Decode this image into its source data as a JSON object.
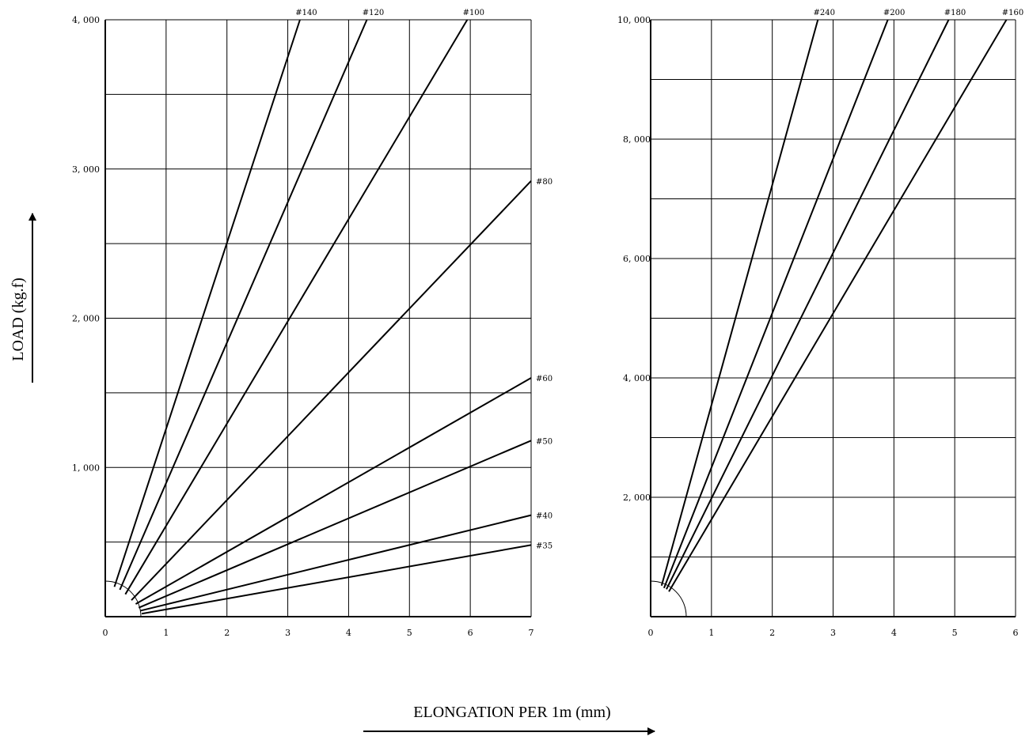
{
  "axis_titles": {
    "y": "LOAD (kg.f)",
    "x": "ELONGATION PER 1m  (mm)"
  },
  "chart_data": [
    {
      "type": "line",
      "xlim": [
        0,
        7
      ],
      "ylim": [
        0,
        4000
      ],
      "x_ticks": [
        0,
        1,
        2,
        3,
        4,
        5,
        6,
        7
      ],
      "x_tick_labels": [
        "0",
        "1",
        "2",
        "3",
        "4",
        "5",
        "6",
        "7"
      ],
      "y_ticks": [
        1000,
        2000,
        3000,
        4000
      ],
      "y_tick_labels": [
        "1, 000",
        "2, 000",
        "3, 000",
        "4, 000"
      ],
      "grid": {
        "x_step": 1,
        "y_step": 500
      },
      "series": [
        {
          "name": "#140",
          "points": [
            [
              0.15,
              200
            ],
            [
              3.2,
              4000
            ]
          ]
        },
        {
          "name": "#120",
          "points": [
            [
              0.24,
              180
            ],
            [
              4.3,
              4000
            ]
          ]
        },
        {
          "name": "#100",
          "points": [
            [
              0.33,
              150
            ],
            [
              5.95,
              4000
            ]
          ]
        },
        {
          "name": "#80",
          "points": [
            [
              0.43,
              110
            ],
            [
              7.0,
              2920
            ]
          ]
        },
        {
          "name": "#60",
          "points": [
            [
              0.5,
              85
            ],
            [
              7.0,
              1600
            ]
          ]
        },
        {
          "name": "#50",
          "points": [
            [
              0.55,
              60
            ],
            [
              7.0,
              1180
            ]
          ]
        },
        {
          "name": "#40",
          "points": [
            [
              0.58,
              40
            ],
            [
              7.0,
              680
            ]
          ]
        },
        {
          "name": "#35",
          "points": [
            [
              0.6,
              20
            ],
            [
              7.0,
              480
            ]
          ]
        }
      ]
    },
    {
      "type": "line",
      "xlim": [
        0,
        6
      ],
      "ylim": [
        0,
        10000
      ],
      "x_ticks": [
        0,
        1,
        2,
        3,
        4,
        5,
        6
      ],
      "x_tick_labels": [
        "0",
        "1",
        "2",
        "3",
        "4",
        "5",
        "6"
      ],
      "y_ticks": [
        2000,
        4000,
        6000,
        8000,
        10000
      ],
      "y_tick_labels": [
        "2, 000",
        "4, 000",
        "6, 000",
        "8, 000",
        "10, 000"
      ],
      "grid": {
        "x_step": 1,
        "y_step": 1000
      },
      "series": [
        {
          "name": "#240",
          "points": [
            [
              0.18,
              520
            ],
            [
              2.75,
              10000
            ]
          ]
        },
        {
          "name": "#200",
          "points": [
            [
              0.22,
              480
            ],
            [
              3.9,
              10000
            ]
          ]
        },
        {
          "name": "#180",
          "points": [
            [
              0.26,
              460
            ],
            [
              4.9,
              10000
            ]
          ]
        },
        {
          "name": "#160",
          "points": [
            [
              0.3,
              420
            ],
            [
              5.85,
              10000
            ]
          ]
        }
      ]
    }
  ]
}
